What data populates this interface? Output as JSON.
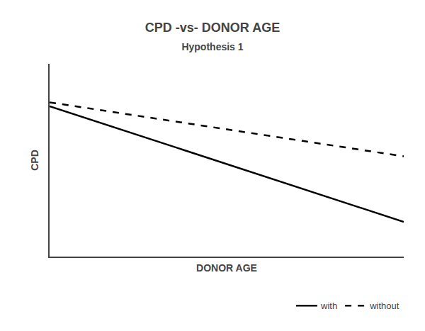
{
  "chart_data": {
    "type": "line",
    "title": "CPD -vs- DONOR AGE",
    "subtitle": "Hypothesis 1",
    "xlabel": "DONOR AGE",
    "ylabel": "CPD",
    "x": [
      0,
      1
    ],
    "series": [
      {
        "name": "with",
        "color": "#000000",
        "line_style": "solid",
        "values": [
          0.78,
          0.18
        ]
      },
      {
        "name": "without",
        "color": "#000000",
        "line_style": "dashed",
        "values": [
          0.8,
          0.52
        ]
      }
    ],
    "xlim": [
      0,
      1
    ],
    "ylim": [
      0,
      1
    ],
    "xticks": [],
    "yticks": [],
    "tick_labels": false,
    "grid": false,
    "legend": "lower right"
  }
}
